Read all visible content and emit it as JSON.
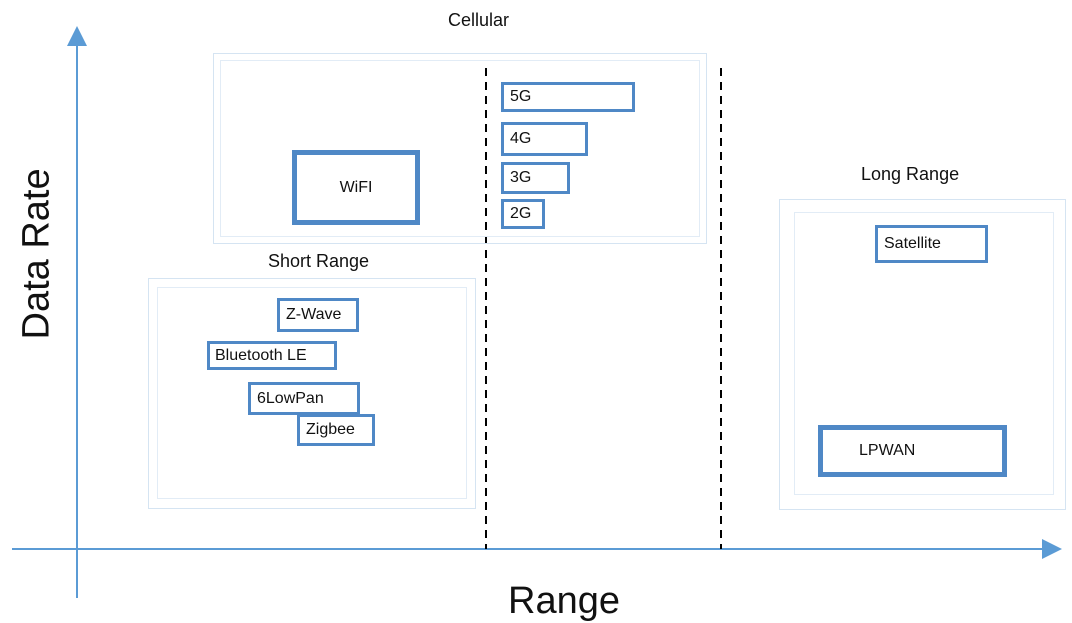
{
  "axes": {
    "x_label": "Range",
    "y_label": "Data Rate",
    "line_color": "#5b9bd5"
  },
  "groups": {
    "cellular": "Cellular",
    "short_range": "Short Range",
    "long_range": "Long Range"
  },
  "technologies": {
    "wifi": "WiFI",
    "g5": "5G",
    "g4": "4G",
    "g3": "3G",
    "g2": "2G",
    "zwave": "Z-Wave",
    "ble": "Bluetooth LE",
    "lowpan": "6LowPan",
    "zigbee": "Zigbee",
    "satellite": "Satellite",
    "lpwan": "LPWAN"
  },
  "colors": {
    "box_border": "#4f88c6",
    "frame_border": "#d5e4f2",
    "divider": "#000000"
  }
}
